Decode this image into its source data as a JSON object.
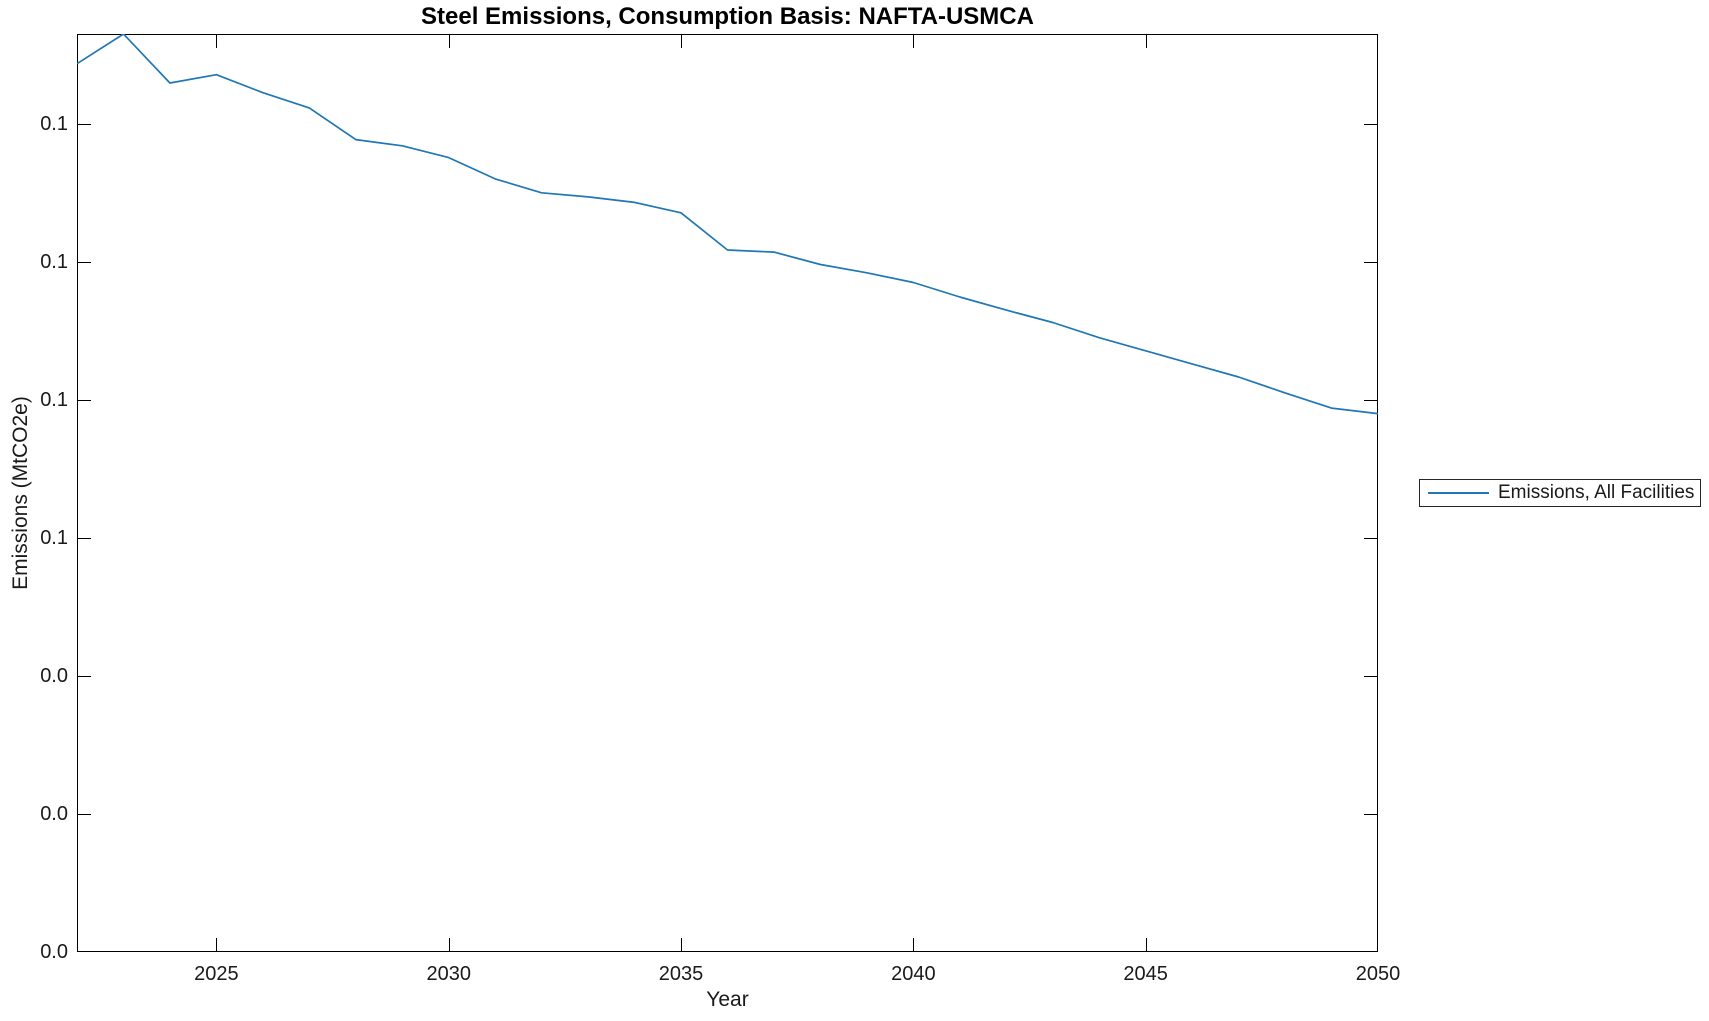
{
  "title": "Steel Emissions, Consumption Basis: NAFTA-USMCA",
  "xlabel": "Year",
  "ylabel": "Emissions (MtCO2e)",
  "legend": {
    "position": "right-outside",
    "items": [
      {
        "label": "Emissions, All Facilities",
        "color": "#1f77b4"
      }
    ]
  },
  "chart_data": {
    "type": "line",
    "title": "Steel Emissions, Consumption Basis: NAFTA-USMCA",
    "xlabel": "Year",
    "ylabel": "Emissions (MtCO2e)",
    "grid": false,
    "box": true,
    "legend_position": "right-outside",
    "xlim": [
      2022,
      2050
    ],
    "ylim": [
      0,
      0.133
    ],
    "x_ticks": [
      {
        "value": 2025,
        "label": "2025"
      },
      {
        "value": 2030,
        "label": "2030"
      },
      {
        "value": 2035,
        "label": "2035"
      },
      {
        "value": 2040,
        "label": "2040"
      },
      {
        "value": 2045,
        "label": "2045"
      },
      {
        "value": 2050,
        "label": "2050"
      }
    ],
    "y_ticks": [
      {
        "value": 0.0,
        "label": "0.0"
      },
      {
        "value": 0.02,
        "label": "0.0"
      },
      {
        "value": 0.04,
        "label": "0.0"
      },
      {
        "value": 0.06,
        "label": "0.1"
      },
      {
        "value": 0.08,
        "label": "0.1"
      },
      {
        "value": 0.1,
        "label": "0.1"
      },
      {
        "value": 0.12,
        "label": "0.1"
      }
    ],
    "series": [
      {
        "name": "Emissions, All Facilities",
        "color": "#1f77b4",
        "x": [
          2022,
          2023,
          2024,
          2025,
          2026,
          2027,
          2028,
          2029,
          2030,
          2031,
          2032,
          2033,
          2034,
          2035,
          2036,
          2037,
          2038,
          2039,
          2040,
          2041,
          2042,
          2043,
          2044,
          2045,
          2046,
          2047,
          2048,
          2049,
          2050
        ],
        "values": [
          0.1287,
          0.133,
          0.1259,
          0.1271,
          0.1245,
          0.1223,
          0.1177,
          0.1168,
          0.1151,
          0.112,
          0.11,
          0.1094,
          0.1086,
          0.1071,
          0.1017,
          0.1014,
          0.0996,
          0.0984,
          0.097,
          0.0949,
          0.093,
          0.0912,
          0.089,
          0.0871,
          0.0852,
          0.0833,
          0.081,
          0.0788,
          0.078
        ]
      }
    ]
  }
}
